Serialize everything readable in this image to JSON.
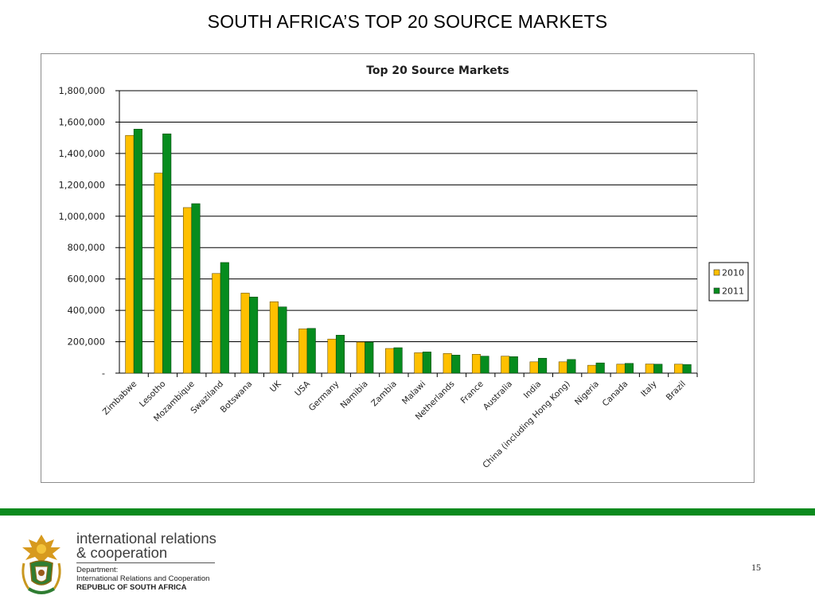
{
  "slide": {
    "title": "SOUTH AFRICA’S TOP 20 SOURCE MARKETS",
    "page_number": "15"
  },
  "footer": {
    "dept_line1": "international relations",
    "dept_line2": "& cooperation",
    "sub_line1": "Department:",
    "sub_line2": "International Relations and Cooperation",
    "sub_line3": "REPUBLIC OF SOUTH AFRICA",
    "accent_color": "#0b8a1e"
  },
  "chart_data": {
    "type": "bar",
    "title": "Top 20 Source Markets",
    "xlabel": "",
    "ylabel": "",
    "ylim": [
      0,
      1800000
    ],
    "y_ticks": [
      0,
      200000,
      400000,
      600000,
      800000,
      1000000,
      1200000,
      1400000,
      1600000,
      1800000
    ],
    "y_tick_labels": [
      "-",
      "200,000",
      "400,000",
      "600,000",
      "800,000",
      "1,000,000",
      "1,200,000",
      "1,400,000",
      "1,600,000",
      "1,800,000"
    ],
    "grid": true,
    "legend_position": "right",
    "categories": [
      "Zimbabwe",
      "Lesotho",
      "Mozambique",
      "Swaziland",
      "Botswana",
      "UK",
      "USA",
      "Germany",
      "Namibia",
      "Zambia",
      "Malawi",
      "Netherlands",
      "France",
      "Australia",
      "India",
      "China (including Hong Kong)",
      "Nigeria",
      "Canada",
      "Italy",
      "Brazil"
    ],
    "series": [
      {
        "name": "2010",
        "color": "#ffc000",
        "values": [
          1515000,
          1275000,
          1055000,
          635000,
          510000,
          455000,
          282000,
          217000,
          198000,
          157000,
          130000,
          125000,
          120000,
          108000,
          72000,
          72000,
          50000,
          57000,
          58000,
          57000
        ]
      },
      {
        "name": "2011",
        "color": "#068c1e",
        "values": [
          1555000,
          1525000,
          1080000,
          705000,
          485000,
          422000,
          285000,
          242000,
          198000,
          162000,
          135000,
          115000,
          108000,
          105000,
          95000,
          87000,
          65000,
          62000,
          57000,
          55000
        ]
      }
    ]
  }
}
